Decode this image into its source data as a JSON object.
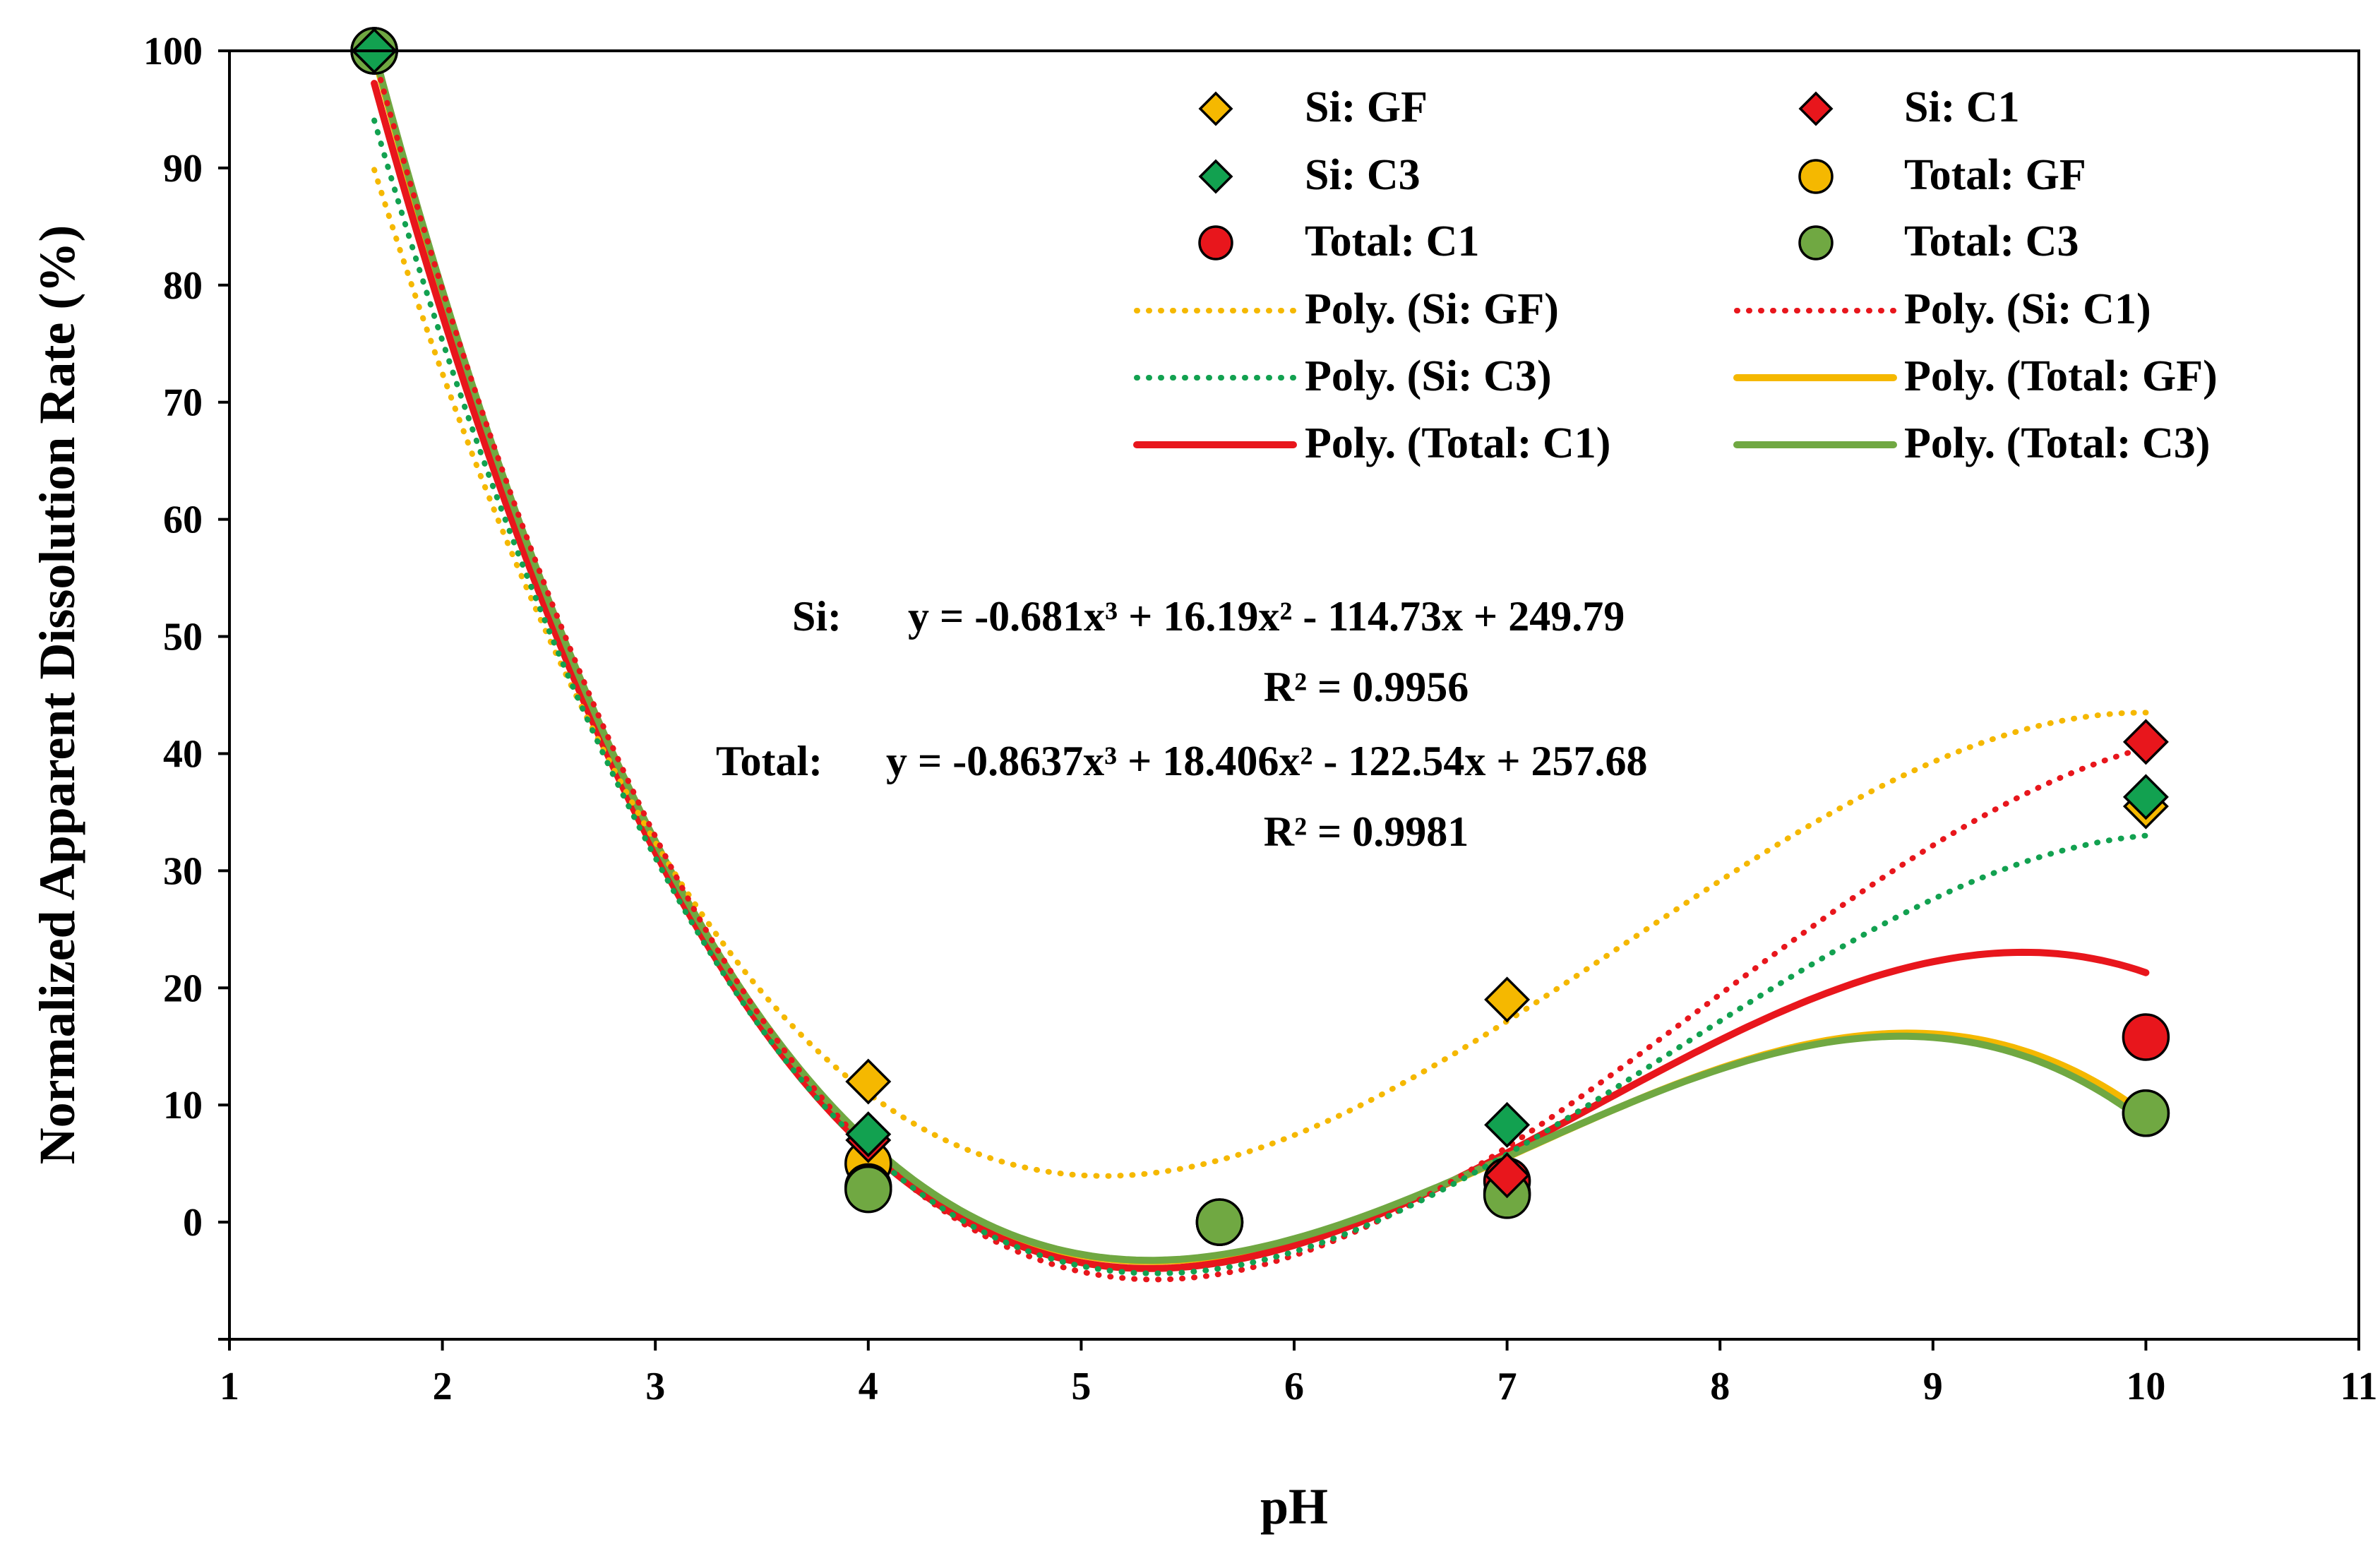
{
  "chart_data": {
    "type": "scatter",
    "title": "",
    "xlabel": "pH",
    "ylabel": "Normalized Apparent Dissolution Rate (%)",
    "xlim": [
      1,
      11
    ],
    "ylim": [
      -10,
      100
    ],
    "xticks": [
      1,
      2,
      3,
      4,
      5,
      6,
      7,
      8,
      9,
      10,
      11
    ],
    "yticks": [
      0,
      10,
      20,
      30,
      40,
      50,
      60,
      70,
      80,
      90,
      100
    ],
    "grid": false,
    "legend_position": "top-right",
    "series": [
      {
        "name": "Si: GF",
        "marker": "diamond",
        "color": "#F5B800",
        "x": [
          1.68,
          4,
          7,
          10
        ],
        "y": [
          100,
          12,
          19,
          35.5
        ]
      },
      {
        "name": "Si: C1",
        "marker": "diamond",
        "color": "#E8161C",
        "x": [
          1.68,
          4,
          7,
          10
        ],
        "y": [
          100,
          7,
          4,
          41
        ]
      },
      {
        "name": "Si: C3",
        "marker": "diamond",
        "color": "#12A150",
        "x": [
          1.68,
          4,
          7,
          10
        ],
        "y": [
          100,
          7.5,
          8.3,
          36.3
        ]
      },
      {
        "name": "Total: GF",
        "marker": "circle",
        "color": "#F5B800",
        "x": [
          1.68,
          4,
          5.65,
          7,
          10
        ],
        "y": [
          100,
          5,
          0,
          2.5,
          9.3
        ]
      },
      {
        "name": "Total: C1",
        "marker": "circle",
        "color": "#E8161C",
        "x": [
          1.68,
          4,
          5.65,
          7,
          10
        ],
        "y": [
          100,
          3,
          0,
          3.5,
          15.8
        ]
      },
      {
        "name": "Total: C3",
        "marker": "circle",
        "color": "#70A842",
        "x": [
          1.68,
          4,
          5.65,
          7,
          10
        ],
        "y": [
          100,
          2.8,
          0,
          2.3,
          9.3
        ]
      }
    ],
    "trendlines": [
      {
        "name": "Poly. (Si: GF)",
        "style": "dotted",
        "color": "#F5B800",
        "coeffs": [
          -0.68,
          15.4,
          -104.1,
          224.5
        ],
        "x_range": [
          1.68,
          10
        ]
      },
      {
        "name": "Poly. (Si: C1)",
        "style": "dotted",
        "color": "#E8161C",
        "coeffs": [
          -0.681,
          16.19,
          -114.73,
          249.79
        ],
        "x_range": [
          1.68,
          10
        ]
      },
      {
        "name": "Poly. (Si: C3)",
        "style": "dotted",
        "color": "#12A150",
        "coeffs": [
          -0.67,
          15.6,
          -109.4,
          237.0
        ],
        "x_range": [
          1.68,
          10
        ]
      },
      {
        "name": "Poly. (Total: GF)",
        "style": "solid",
        "color": "#F5B800",
        "coeffs": [
          -0.8637,
          18.406,
          -122.54,
          257.68
        ],
        "x_range": [
          1.68,
          10
        ]
      },
      {
        "name": "Poly. (Total: C1)",
        "style": "solid",
        "color": "#E8161C",
        "coeffs": [
          -0.78,
          17.25,
          -117.3,
          249.3
        ],
        "x_range": [
          1.68,
          10
        ]
      },
      {
        "name": "Poly. (Total: C3)",
        "style": "solid",
        "color": "#70A842",
        "coeffs": [
          -0.87,
          18.5,
          -123.0,
          258.5
        ],
        "x_range": [
          1.68,
          10
        ]
      }
    ],
    "annotations": [
      {
        "label": "Si:",
        "equation": "y = -0.681x³ + 16.19x² - 114.73x + 249.79",
        "r2": "R² = 0.9956"
      },
      {
        "label": "Total:",
        "equation": "y = -0.8637x³ + 18.406x² - 122.54x + 257.68",
        "r2": "R² = 0.9981"
      }
    ]
  }
}
